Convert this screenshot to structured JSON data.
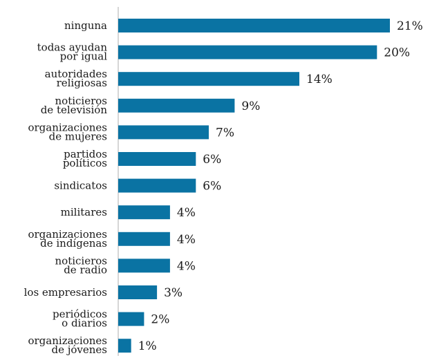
{
  "chart_data": {
    "type": "bar",
    "orientation": "horizontal",
    "categories": [
      [
        "ninguna"
      ],
      [
        "todas ayudan",
        "por igual"
      ],
      [
        "autoridades",
        "religiosas"
      ],
      [
        "noticieros",
        "de televisión"
      ],
      [
        "organizaciones",
        "de mujeres"
      ],
      [
        "partidos",
        "políticos"
      ],
      [
        "sindicatos"
      ],
      [
        "militares"
      ],
      [
        "organizaciones",
        "de indígenas"
      ],
      [
        "noticieros",
        "de radio"
      ],
      [
        "los empresarios"
      ],
      [
        "periódicos",
        "o diarios"
      ],
      [
        "organizaciones",
        "de jóvenes"
      ]
    ],
    "values": [
      21,
      20,
      14,
      9,
      7,
      6,
      6,
      4,
      4,
      4,
      3,
      2,
      1
    ],
    "value_labels": [
      "21%",
      "20%",
      "14%",
      "9%",
      "7%",
      "6%",
      "6%",
      "4%",
      "4%",
      "4%",
      "3%",
      "2%",
      "1%"
    ],
    "xlim": [
      0,
      21
    ],
    "bar_color": "#0a73a3",
    "axis_color": "#c8c8c8",
    "grid": false,
    "legend": "none"
  }
}
